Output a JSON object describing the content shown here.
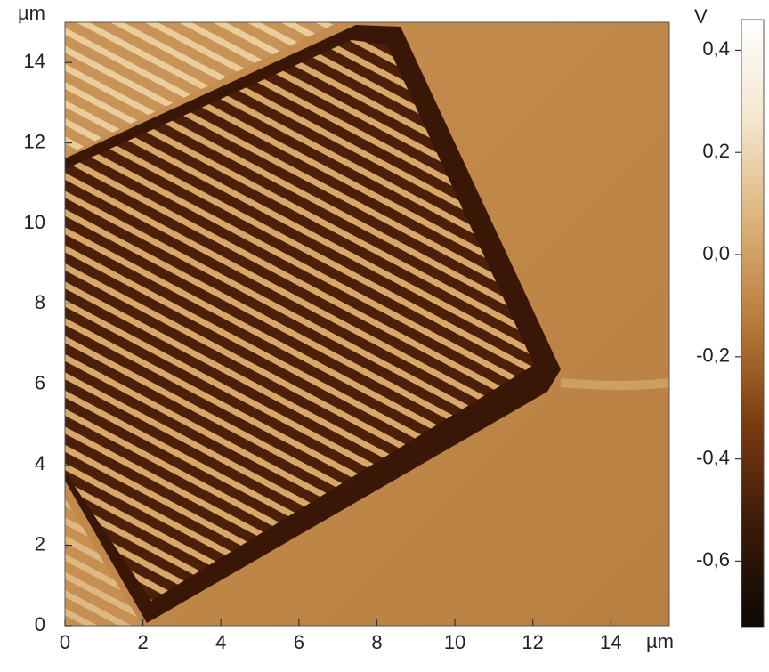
{
  "chart_data": {
    "type": "image-map",
    "x_unit": "µm",
    "y_unit": "µm",
    "colorbar_unit": "V",
    "xlim": [
      0,
      15.5
    ],
    "ylim": [
      0,
      15
    ],
    "xticks": [
      0,
      2,
      4,
      6,
      8,
      10,
      12,
      14
    ],
    "yticks": [
      0,
      2,
      4,
      6,
      8,
      10,
      12,
      14
    ],
    "clim": [
      -0.73,
      0.46
    ],
    "cticks": [
      {
        "value": 0.4,
        "label": "0,4"
      },
      {
        "value": 0.2,
        "label": "0,2"
      },
      {
        "value": 0.0,
        "label": "0,0"
      },
      {
        "value": -0.2,
        "label": "-0,2"
      },
      {
        "value": -0.4,
        "label": "-0,4"
      },
      {
        "value": -0.6,
        "label": "-0,6"
      }
    ],
    "colormap": [
      "#0d0805",
      "#3a1a08",
      "#7a3a10",
      "#b87a38",
      "#dcb27a",
      "#f4e6cc",
      "#ffffff"
    ]
  }
}
